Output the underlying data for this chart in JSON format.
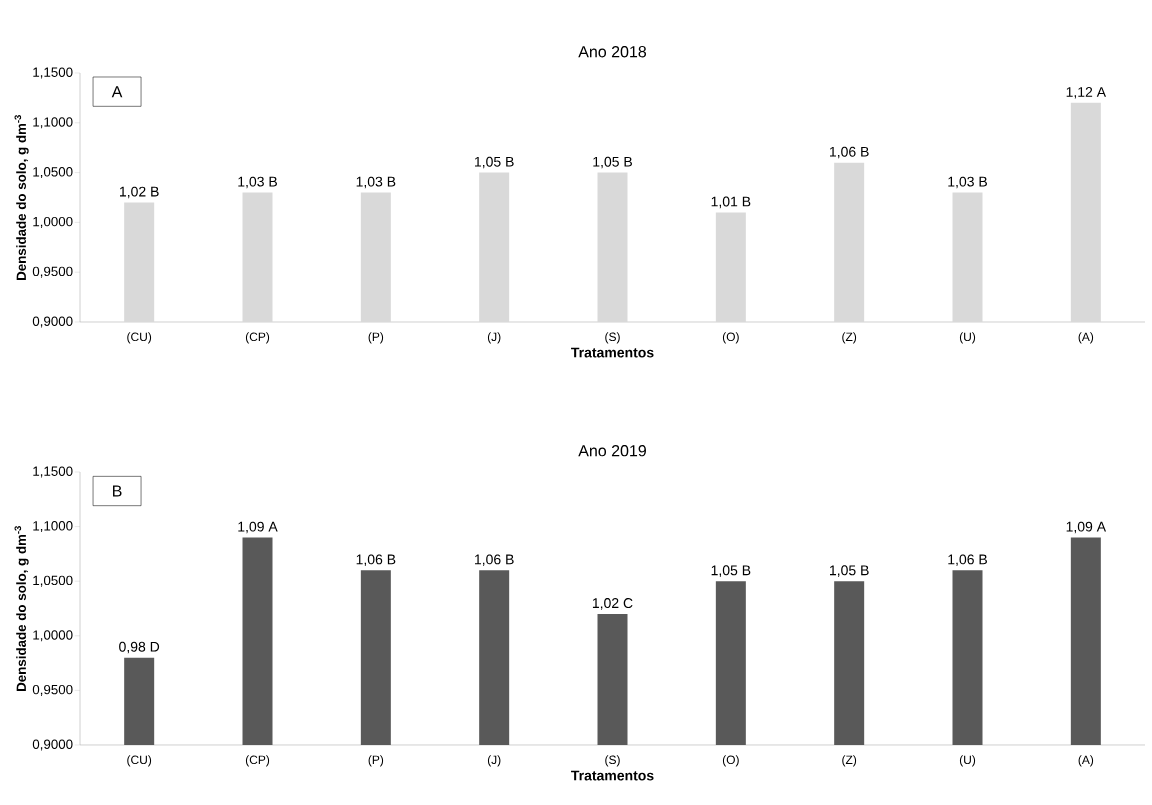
{
  "chart_data": [
    {
      "type": "bar",
      "title": "Ano 2018",
      "xlabel": "Tratamentos",
      "ylabel": "Densidade do solo, g dm$^{-3}$",
      "categories": [
        "(CU)",
        "(CP)",
        "(P)",
        "(J)",
        "(S)",
        "(O)",
        "(Z)",
        "(U)",
        "(A)"
      ],
      "values": [
        1.02,
        1.03,
        1.03,
        1.05,
        1.05,
        1.01,
        1.06,
        1.03,
        1.12
      ],
      "color": "#d9d9d9",
      "value_labels": [
        "1,02 B",
        "1,03 B",
        "1,03 B",
        "1,05 B",
        "1,05 B",
        "1,01 B",
        "1,06 B",
        "1,03 B",
        "1,12 A"
      ],
      "ylim": [
        0.9,
        1.15
      ],
      "yticks": [
        {
          "value": 0.9,
          "label": "0,9000"
        },
        {
          "value": 0.95,
          "label": "0,9500"
        },
        {
          "value": 1.0,
          "label": "1,0000"
        },
        {
          "value": 1.05,
          "label": "1,0500"
        },
        {
          "value": 1.1,
          "label": "1,1000"
        },
        {
          "value": 1.15,
          "label": "1,1500"
        }
      ],
      "annotations": [
        "A"
      ]
    },
    {
      "type": "bar",
      "title": "Ano 2019",
      "xlabel": "Tratamentos",
      "ylabel": "Densidade do solo, g dm$^{-3}$",
      "categories": [
        "(CU)",
        "(CP)",
        "(P)",
        "(J)",
        "(S)",
        "(O)",
        "(Z)",
        "(U)",
        "(A)"
      ],
      "values": [
        0.98,
        1.09,
        1.06,
        1.06,
        1.02,
        1.05,
        1.05,
        1.06,
        1.09
      ],
      "color": "#595959",
      "value_labels": [
        "0,98 D",
        "1,09 A",
        "1,06 B",
        "1,06 B",
        "1,02 C",
        "1,05 B",
        "1,05 B",
        "1,06 B",
        "1,09 A"
      ],
      "ylim": [
        0.9,
        1.15
      ],
      "yticks": [
        {
          "value": 0.9,
          "label": "0,9000"
        },
        {
          "value": 0.95,
          "label": "0,9500"
        },
        {
          "value": 1.0,
          "label": "1,0000"
        },
        {
          "value": 1.05,
          "label": "1,0500"
        },
        {
          "value": 1.1,
          "label": "1,1000"
        },
        {
          "value": 1.15,
          "label": "1,1500"
        }
      ],
      "annotations": [
        "B"
      ]
    }
  ]
}
